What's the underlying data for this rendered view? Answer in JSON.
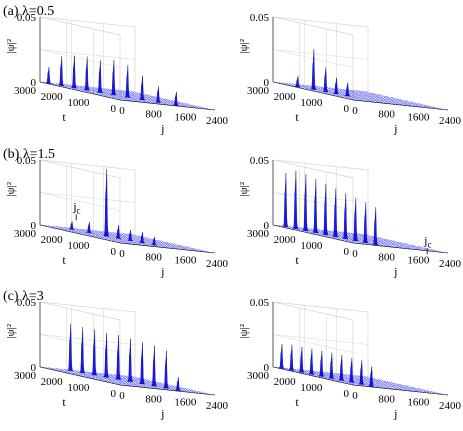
{
  "figure": {
    "rows": [
      {
        "label": "(a) λ=0.5",
        "key": "a"
      },
      {
        "label": "(b) λ=1.5",
        "key": "b"
      },
      {
        "label": "(c) λ=3",
        "key": "c"
      }
    ]
  },
  "chart_data": [
    {
      "type": "area",
      "panel": "a-left",
      "title": "(a) λ=0.5",
      "xlabel": "j",
      "ylabel": "|ψ|²",
      "tlabel": "t",
      "xlim": [
        0,
        2400
      ],
      "ylim": [
        0,
        0.05
      ],
      "tlim": [
        0,
        3000
      ],
      "xticks": [
        "0",
        "800",
        "1600",
        "2400"
      ],
      "yticks": [
        "0",
        "0.05"
      ],
      "tticks": [
        "0",
        "1000",
        "2000",
        "3000"
      ],
      "series_color": "#0000ee",
      "grid": true,
      "peaks": [
        {
          "t": 2900,
          "j": 150,
          "height": 0.012
        },
        {
          "t": 2600,
          "j": 270,
          "height": 0.022
        },
        {
          "t": 2300,
          "j": 390,
          "height": 0.024
        },
        {
          "t": 2000,
          "j": 510,
          "height": 0.025
        },
        {
          "t": 1700,
          "j": 640,
          "height": 0.024
        },
        {
          "t": 1400,
          "j": 780,
          "height": 0.026
        },
        {
          "t": 1100,
          "j": 930,
          "height": 0.024
        },
        {
          "t": 800,
          "j": 1100,
          "height": 0.018
        },
        {
          "t": 500,
          "j": 1300,
          "height": 0.012
        },
        {
          "t": 200,
          "j": 1550,
          "height": 0.01
        }
      ]
    },
    {
      "type": "area",
      "panel": "a-right",
      "xlabel": "j",
      "ylabel": "|ψ|²",
      "tlabel": "t",
      "xlim": [
        0,
        2400
      ],
      "ylim": [
        0,
        0.05
      ],
      "tlim": [
        0,
        3000
      ],
      "xticks": [
        "0",
        "800",
        "1600",
        "2400"
      ],
      "yticks": [
        "0",
        "0.05"
      ],
      "tticks": [
        "0",
        "1000",
        "2000",
        "3000"
      ],
      "series_color": "#0000ee",
      "grid": true,
      "peaks": [
        {
          "t": 2300,
          "j": 150,
          "height": 0.008
        },
        {
          "t": 2000,
          "j": 350,
          "height": 0.03
        },
        {
          "t": 1700,
          "j": 450,
          "height": 0.018
        },
        {
          "t": 1400,
          "j": 520,
          "height": 0.012
        },
        {
          "t": 1100,
          "j": 600,
          "height": 0.01
        }
      ]
    },
    {
      "type": "area",
      "panel": "b-left",
      "title": "(b) λ=1.5",
      "xlabel": "j",
      "ylabel": "|ψ|²",
      "tlabel": "t",
      "xlim": [
        0,
        2400
      ],
      "ylim": [
        0,
        0.05
      ],
      "tlim": [
        0,
        3000
      ],
      "xticks": [
        "0",
        "800",
        "1600",
        "2400"
      ],
      "yticks": [
        "0",
        "0.05"
      ],
      "tticks": [
        "0",
        "1000",
        "2000",
        "3000"
      ],
      "annotation": "jc",
      "series_color": "#0000ee",
      "grid": true,
      "peaks": [
        {
          "t": 2700,
          "j": 600,
          "height": 0.006
        },
        {
          "t": 2200,
          "j": 700,
          "height": 0.008
        },
        {
          "t": 1700,
          "j": 800,
          "height": 0.05
        },
        {
          "t": 1400,
          "j": 900,
          "height": 0.01
        },
        {
          "t": 1100,
          "j": 1000,
          "height": 0.008
        },
        {
          "t": 800,
          "j": 1100,
          "height": 0.008
        },
        {
          "t": 500,
          "j": 1200,
          "height": 0.006
        }
      ]
    },
    {
      "type": "area",
      "panel": "b-right",
      "xlabel": "j",
      "ylabel": "|ψ|²",
      "tlabel": "t",
      "xlim": [
        0,
        2400
      ],
      "ylim": [
        0,
        0.05
      ],
      "tlim": [
        0,
        3000
      ],
      "xticks": [
        "0",
        "800",
        "1600",
        "2400"
      ],
      "yticks": [
        "0",
        "0.05"
      ],
      "tticks": [
        "0",
        "1000",
        "2000",
        "3000"
      ],
      "annotation": "jc",
      "series_color": "#0000ee",
      "grid": true,
      "peaks": [
        {
          "t": 2900,
          "j": 250,
          "height": 0.04
        },
        {
          "t": 2600,
          "j": 300,
          "height": 0.043
        },
        {
          "t": 2300,
          "j": 350,
          "height": 0.042
        },
        {
          "t": 2000,
          "j": 400,
          "height": 0.04
        },
        {
          "t": 1700,
          "j": 450,
          "height": 0.038
        },
        {
          "t": 1400,
          "j": 500,
          "height": 0.036
        },
        {
          "t": 1100,
          "j": 550,
          "height": 0.034
        },
        {
          "t": 800,
          "j": 600,
          "height": 0.032
        },
        {
          "t": 500,
          "j": 650,
          "height": 0.03
        },
        {
          "t": 200,
          "j": 700,
          "height": 0.028
        }
      ]
    },
    {
      "type": "area",
      "panel": "c-left",
      "title": "(c) λ=3",
      "xlabel": "j",
      "ylabel": "|ψ|²",
      "tlabel": "t",
      "xlim": [
        0,
        2400
      ],
      "ylim": [
        0,
        0.05
      ],
      "tlim": [
        0,
        3000
      ],
      "xticks": [
        "0",
        "800",
        "1600",
        "2400"
      ],
      "yticks": [
        "0",
        "0.05"
      ],
      "tticks": [
        "0",
        "1000",
        "2000",
        "3000"
      ],
      "series_color": "#0000ee",
      "grid": true,
      "peaks": [
        {
          "t": 2900,
          "j": 700,
          "height": 0.035
        },
        {
          "t": 2600,
          "j": 800,
          "height": 0.034
        },
        {
          "t": 2300,
          "j": 900,
          "height": 0.034
        },
        {
          "t": 2000,
          "j": 1000,
          "height": 0.033
        },
        {
          "t": 1700,
          "j": 1100,
          "height": 0.033
        },
        {
          "t": 1400,
          "j": 1200,
          "height": 0.032
        },
        {
          "t": 1100,
          "j": 1300,
          "height": 0.031
        },
        {
          "t": 800,
          "j": 1400,
          "height": 0.03
        },
        {
          "t": 500,
          "j": 1500,
          "height": 0.028
        },
        {
          "t": 200,
          "j": 1600,
          "height": 0.01
        }
      ]
    },
    {
      "type": "area",
      "panel": "c-right",
      "xlabel": "j",
      "ylabel": "|ψ|²",
      "tlabel": "t",
      "xlim": [
        0,
        2400
      ],
      "ylim": [
        0,
        0.05
      ],
      "tlim": [
        0,
        3000
      ],
      "xticks": [
        "0",
        "800",
        "1600",
        "2400"
      ],
      "yticks": [
        "0",
        "0.05"
      ],
      "tticks": [
        "0",
        "1000",
        "2000",
        "3000"
      ],
      "series_color": "#0000ee",
      "grid": true,
      "peaks": [
        {
          "t": 2900,
          "j": 150,
          "height": 0.018
        },
        {
          "t": 2600,
          "j": 200,
          "height": 0.019
        },
        {
          "t": 2300,
          "j": 250,
          "height": 0.019
        },
        {
          "t": 2000,
          "j": 300,
          "height": 0.019
        },
        {
          "t": 1700,
          "j": 350,
          "height": 0.019
        },
        {
          "t": 1400,
          "j": 400,
          "height": 0.019
        },
        {
          "t": 1100,
          "j": 450,
          "height": 0.019
        },
        {
          "t": 800,
          "j": 500,
          "height": 0.018
        },
        {
          "t": 500,
          "j": 550,
          "height": 0.018
        },
        {
          "t": 200,
          "j": 600,
          "height": 0.015
        }
      ]
    }
  ]
}
